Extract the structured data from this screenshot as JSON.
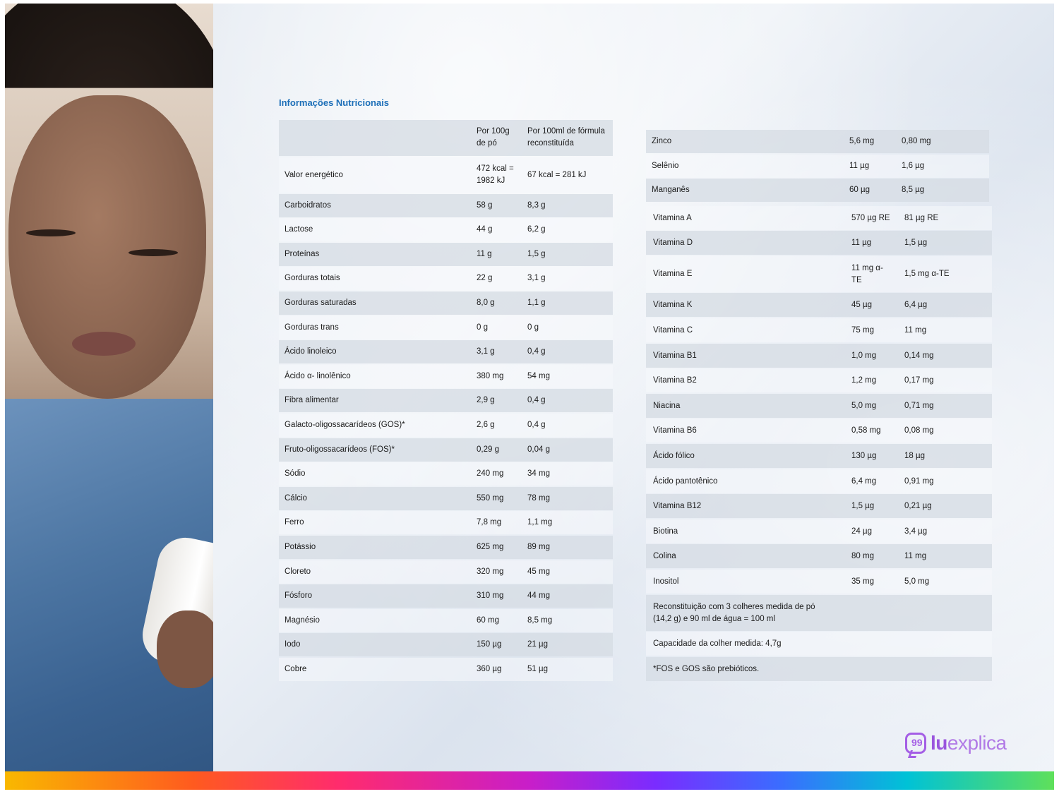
{
  "title": "Informações Nutricionais",
  "header": {
    "col1": "Por 100g de pó",
    "col2": "Por 100ml de fórmula reconstituída"
  },
  "left_table": [
    {
      "name": "Valor energético",
      "per100g": "472 kcal = 1982 kJ",
      "per100ml": "67 kcal = 281 kJ"
    },
    {
      "name": "Carboidratos",
      "per100g": "58 g",
      "per100ml": "8,3 g"
    },
    {
      "name": "Lactose",
      "per100g": "44 g",
      "per100ml": "6,2 g"
    },
    {
      "name": "Proteínas",
      "per100g": "11 g",
      "per100ml": "1,5 g"
    },
    {
      "name": "Gorduras totais",
      "per100g": "22 g",
      "per100ml": "3,1 g"
    },
    {
      "name": "Gorduras saturadas",
      "per100g": "8,0 g",
      "per100ml": "1,1 g"
    },
    {
      "name": "Gorduras trans",
      "per100g": "0 g",
      "per100ml": "0 g"
    },
    {
      "name": "Ácido linoleico",
      "per100g": "3,1 g",
      "per100ml": "0,4 g"
    },
    {
      "name": "Ácido α- linolênico",
      "per100g": "380 mg",
      "per100ml": "54 mg"
    },
    {
      "name": "Fibra alimentar",
      "per100g": "2,9 g",
      "per100ml": "0,4 g"
    },
    {
      "name": "Galacto-oligossacarídeos (GOS)*",
      "per100g": "2,6 g",
      "per100ml": "0,4 g"
    },
    {
      "name": "Fruto-oligossacarídeos (FOS)*",
      "per100g": "0,29 g",
      "per100ml": "0,04 g"
    },
    {
      "name": "Sódio",
      "per100g": "240 mg",
      "per100ml": "34 mg"
    },
    {
      "name": "Cálcio",
      "per100g": "550 mg",
      "per100ml": "78 mg"
    },
    {
      "name": "Ferro",
      "per100g": "7,8 mg",
      "per100ml": "1,1 mg"
    },
    {
      "name": "Potássio",
      "per100g": "625 mg",
      "per100ml": "89 mg"
    },
    {
      "name": "Cloreto",
      "per100g": "320 mg",
      "per100ml": "45 mg"
    },
    {
      "name": "Fósforo",
      "per100g": "310 mg",
      "per100ml": "44 mg"
    },
    {
      "name": "Magnésio",
      "per100g": "60 mg",
      "per100ml": "8,5 mg"
    },
    {
      "name": "Iodo",
      "per100g": "150 µg",
      "per100ml": "21 µg"
    },
    {
      "name": "Cobre",
      "per100g": "360 µg",
      "per100ml": "51 µg"
    }
  ],
  "right_table_minerals": [
    {
      "name": "Zinco",
      "per100g": "5,6 mg",
      "per100ml": "0,80 mg"
    },
    {
      "name": "Selênio",
      "per100g": "11 µg",
      "per100ml": "1,6 µg"
    },
    {
      "name": "Manganês",
      "per100g": "60 µg",
      "per100ml": "8,5 µg"
    }
  ],
  "right_table_vitamins": [
    {
      "name": "Vitamina A",
      "per100g": "570 µg RE",
      "per100ml": "81 µg RE"
    },
    {
      "name": "Vitamina D",
      "per100g": "11 µg",
      "per100ml": "1,5 µg"
    },
    {
      "name": "Vitamina E",
      "per100g": "11 mg α-TE",
      "per100ml": "1,5 mg α-TE"
    },
    {
      "name": "Vitamina K",
      "per100g": "45 µg",
      "per100ml": "6,4 µg"
    },
    {
      "name": "Vitamina C",
      "per100g": "75 mg",
      "per100ml": "11 mg"
    },
    {
      "name": "Vitamina B1",
      "per100g": "1,0 mg",
      "per100ml": "0,14 mg"
    },
    {
      "name": "Vitamina B2",
      "per100g": "1,2 mg",
      "per100ml": "0,17 mg"
    },
    {
      "name": "Niacina",
      "per100g": "5,0 mg",
      "per100ml": "0,71 mg"
    },
    {
      "name": "Vitamina B6",
      "per100g": "0,58 mg",
      "per100ml": "0,08 mg"
    },
    {
      "name": "Ácido fólico",
      "per100g": "130 µg",
      "per100ml": "18 µg"
    },
    {
      "name": "Ácido pantotênico",
      "per100g": "6,4 mg",
      "per100ml": "0,91 mg"
    },
    {
      "name": "Vitamina B12",
      "per100g": "1,5 µg",
      "per100ml": "0,21 µg"
    },
    {
      "name": "Biotina",
      "per100g": "24 µg",
      "per100ml": "3,4 µg"
    },
    {
      "name": "Colina",
      "per100g": "80 mg",
      "per100ml": "11 mg"
    },
    {
      "name": "Inositol",
      "per100g": "35 mg",
      "per100ml": "5,0 mg"
    }
  ],
  "notes": [
    "Reconstituição com 3 colheres medida de pó (14,2 g) e 90 ml de água = 100 ml",
    "Capacidade da colher medida: 4,7g",
    "*FOS e GOS são prebióticos."
  ],
  "logo": {
    "mark": "99",
    "bold": "lu",
    "light": "explica"
  }
}
